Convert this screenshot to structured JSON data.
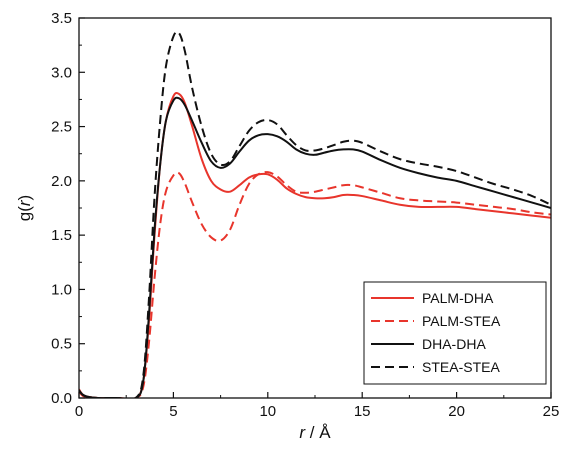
{
  "chart_data": {
    "type": "line",
    "xlabel_var": "r",
    "xlabel_unit": " / Å",
    "ylabel_pre": "g(",
    "ylabel_var": "r",
    "ylabel_post": ")",
    "xlim": [
      0,
      25
    ],
    "ylim": [
      0,
      3.5
    ],
    "xticks": [
      0,
      5,
      10,
      15,
      20,
      25
    ],
    "yticks": [
      0.0,
      0.5,
      1.0,
      1.5,
      2.0,
      2.5,
      3.0,
      3.5
    ],
    "xtick_labels": [
      "0",
      "5",
      "10",
      "15",
      "20",
      "25"
    ],
    "ytick_labels": [
      "0.0",
      "0.5",
      "1.0",
      "1.5",
      "2.0",
      "2.5",
      "3.0",
      "3.5"
    ],
    "grid": false,
    "legend_position": "bottom-right",
    "series": [
      {
        "name": "PALM-DHA",
        "color": "#e8352c",
        "dash": "solid",
        "x": [
          0.0,
          0.2,
          0.5,
          1.0,
          2.0,
          3.0,
          3.4,
          3.7,
          4.0,
          4.3,
          4.6,
          5.0,
          5.3,
          5.6,
          6.0,
          6.5,
          7.0,
          7.5,
          8.0,
          8.5,
          9.0,
          9.5,
          10.0,
          10.5,
          11.0,
          11.5,
          12.0,
          12.5,
          13.0,
          13.5,
          14.0,
          14.5,
          15.0,
          16.0,
          17.0,
          18.0,
          19.0,
          20.0,
          21.0,
          22.0,
          23.0,
          24.0,
          25.0
        ],
        "y": [
          0.08,
          0.03,
          0.01,
          0.0,
          0.0,
          0.0,
          0.15,
          0.7,
          1.5,
          2.15,
          2.55,
          2.78,
          2.8,
          2.72,
          2.5,
          2.2,
          2.0,
          1.92,
          1.9,
          1.96,
          2.03,
          2.06,
          2.06,
          2.01,
          1.93,
          1.88,
          1.85,
          1.84,
          1.84,
          1.85,
          1.87,
          1.87,
          1.86,
          1.82,
          1.78,
          1.76,
          1.76,
          1.76,
          1.74,
          1.72,
          1.7,
          1.68,
          1.66
        ]
      },
      {
        "name": "PALM-STEA",
        "color": "#e8352c",
        "dash": "dashed",
        "x": [
          0.0,
          0.2,
          0.5,
          1.0,
          2.0,
          3.0,
          3.4,
          3.7,
          4.0,
          4.3,
          4.6,
          5.0,
          5.3,
          5.6,
          6.0,
          6.5,
          7.0,
          7.5,
          8.0,
          8.5,
          9.0,
          9.5,
          10.0,
          10.5,
          11.0,
          11.5,
          12.0,
          12.5,
          13.0,
          13.5,
          14.0,
          14.5,
          15.0,
          16.0,
          17.0,
          18.0,
          19.0,
          20.0,
          21.0,
          22.0,
          23.0,
          24.0,
          25.0
        ],
        "y": [
          0.06,
          0.02,
          0.01,
          0.0,
          0.0,
          0.0,
          0.1,
          0.5,
          1.1,
          1.6,
          1.9,
          2.05,
          2.07,
          1.98,
          1.8,
          1.6,
          1.48,
          1.45,
          1.55,
          1.78,
          1.97,
          2.06,
          2.08,
          2.04,
          1.96,
          1.9,
          1.89,
          1.9,
          1.92,
          1.94,
          1.96,
          1.96,
          1.94,
          1.89,
          1.84,
          1.82,
          1.81,
          1.8,
          1.78,
          1.76,
          1.74,
          1.71,
          1.69
        ]
      },
      {
        "name": "DHA-DHA",
        "color": "#111111",
        "dash": "solid",
        "x": [
          0.0,
          0.2,
          0.5,
          1.0,
          2.0,
          3.0,
          3.4,
          3.7,
          4.0,
          4.3,
          4.6,
          5.0,
          5.3,
          5.6,
          6.0,
          6.5,
          7.0,
          7.5,
          8.0,
          8.5,
          9.0,
          9.5,
          10.0,
          10.5,
          11.0,
          11.5,
          12.0,
          12.5,
          13.0,
          13.5,
          14.0,
          14.5,
          15.0,
          16.0,
          17.0,
          18.0,
          19.0,
          20.0,
          21.0,
          22.0,
          23.0,
          24.0,
          25.0
        ],
        "y": [
          0.07,
          0.03,
          0.01,
          0.0,
          0.0,
          0.0,
          0.15,
          0.75,
          1.55,
          2.15,
          2.55,
          2.74,
          2.76,
          2.7,
          2.55,
          2.35,
          2.18,
          2.12,
          2.16,
          2.27,
          2.37,
          2.42,
          2.43,
          2.41,
          2.36,
          2.29,
          2.25,
          2.24,
          2.26,
          2.28,
          2.29,
          2.29,
          2.27,
          2.19,
          2.12,
          2.07,
          2.03,
          2.0,
          1.95,
          1.9,
          1.85,
          1.8,
          1.75
        ]
      },
      {
        "name": "STEA-STEA",
        "color": "#111111",
        "dash": "dashed",
        "x": [
          0.0,
          0.2,
          0.5,
          1.0,
          2.0,
          3.0,
          3.4,
          3.7,
          4.0,
          4.3,
          4.6,
          5.0,
          5.3,
          5.6,
          6.0,
          6.5,
          7.0,
          7.5,
          8.0,
          8.5,
          9.0,
          9.5,
          10.0,
          10.5,
          11.0,
          11.5,
          12.0,
          12.5,
          13.0,
          13.5,
          14.0,
          14.5,
          15.0,
          16.0,
          17.0,
          18.0,
          19.0,
          20.0,
          21.0,
          22.0,
          23.0,
          24.0,
          25.0
        ],
        "y": [
          0.07,
          0.03,
          0.01,
          0.0,
          0.0,
          0.0,
          0.2,
          0.9,
          1.85,
          2.55,
          3.05,
          3.33,
          3.36,
          3.2,
          2.85,
          2.5,
          2.25,
          2.15,
          2.18,
          2.32,
          2.46,
          2.54,
          2.56,
          2.52,
          2.42,
          2.33,
          2.28,
          2.28,
          2.3,
          2.33,
          2.36,
          2.37,
          2.35,
          2.27,
          2.2,
          2.16,
          2.13,
          2.09,
          2.03,
          1.97,
          1.92,
          1.86,
          1.78
        ]
      }
    ]
  }
}
